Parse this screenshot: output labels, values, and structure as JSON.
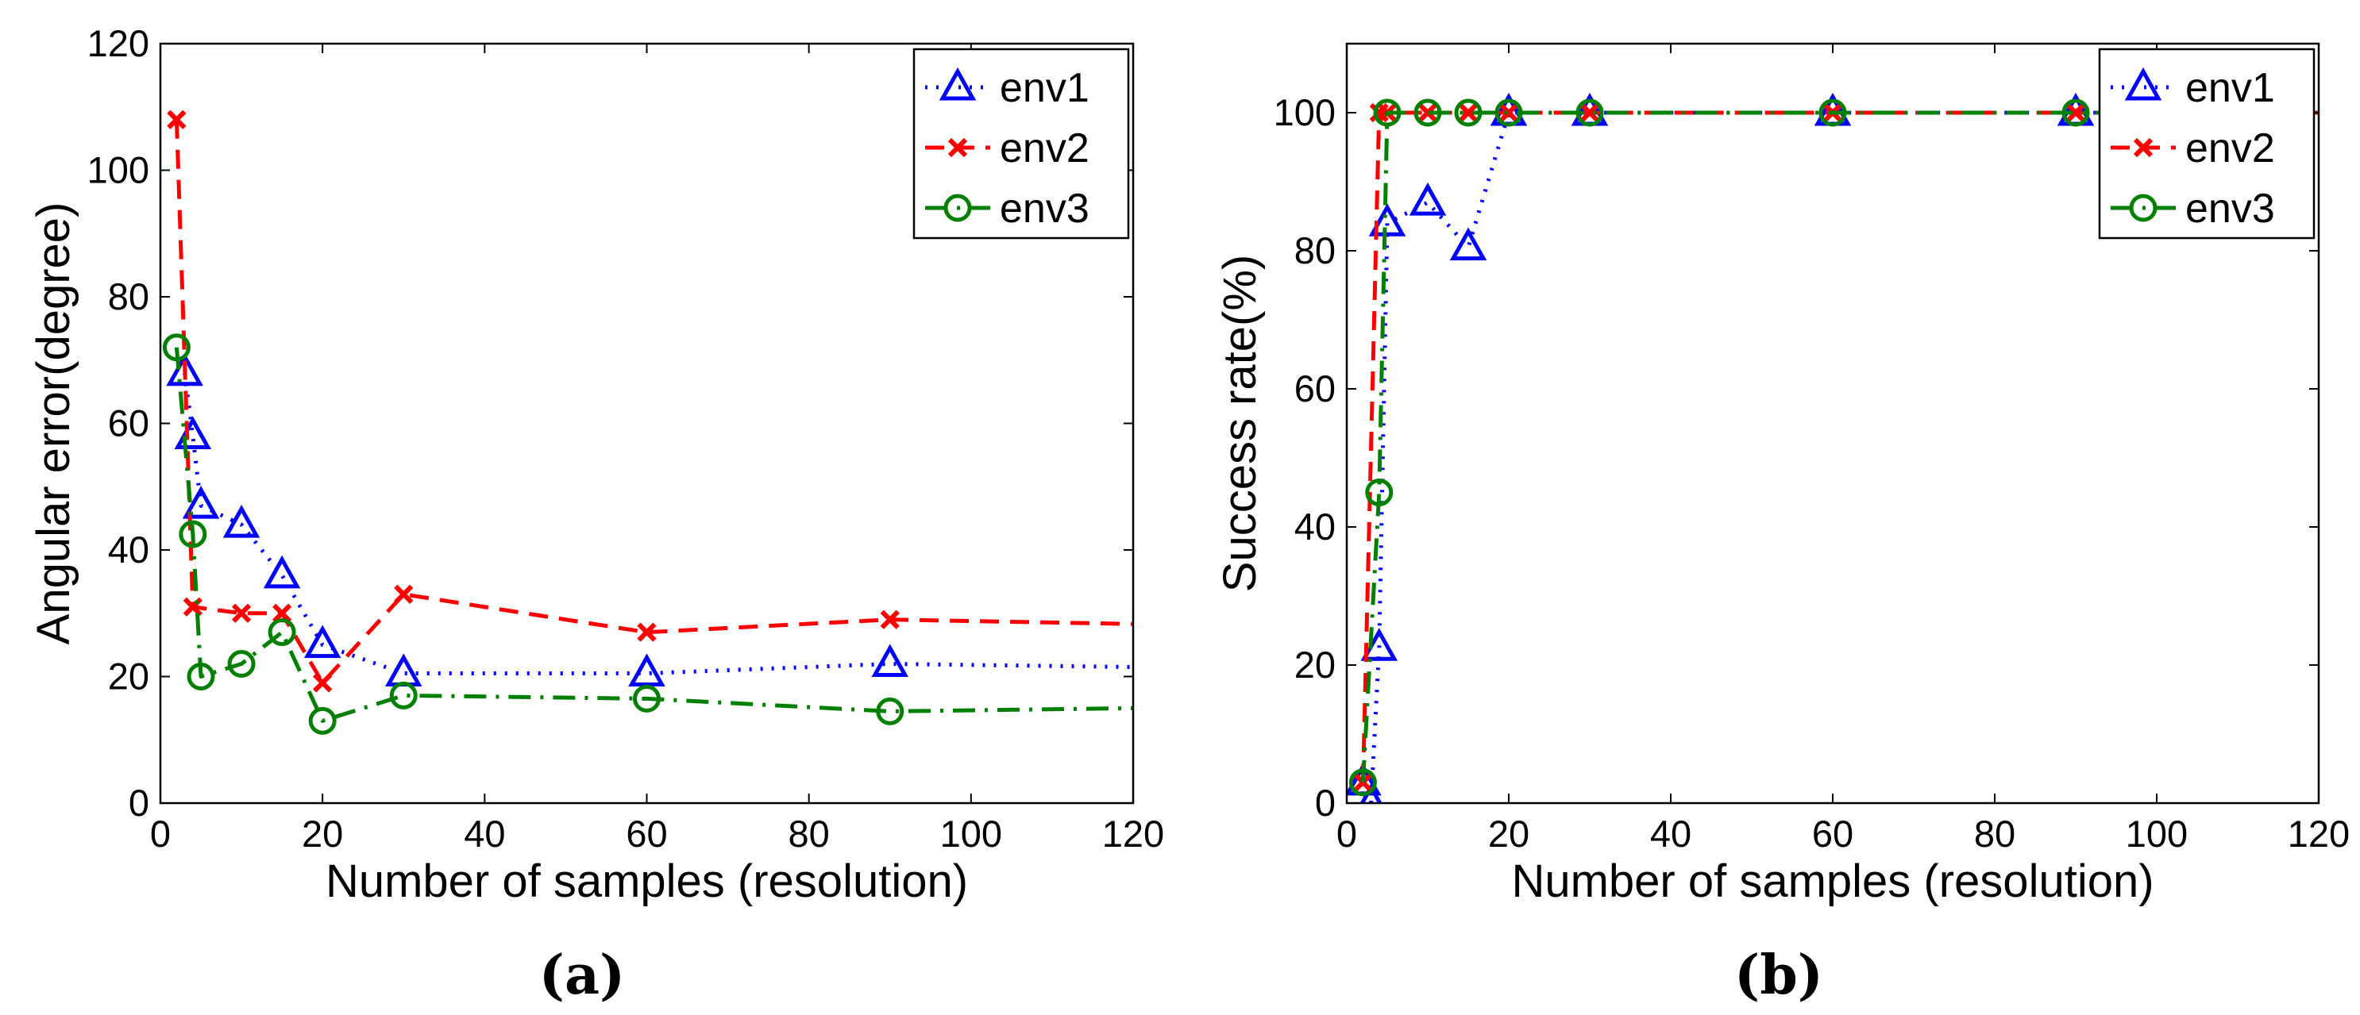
{
  "chart_data": [
    {
      "type": "line",
      "panel_label": "(a)",
      "title": "",
      "xlabel": "Number of samples (resolution)",
      "ylabel": "Angular error(degree)",
      "xlim": [
        0,
        120
      ],
      "ylim": [
        0,
        120
      ],
      "xticks": [
        "0",
        "20",
        "40",
        "60",
        "80",
        "100",
        "120"
      ],
      "yticks": [
        "0",
        "20",
        "40",
        "60",
        "80",
        "100",
        "120"
      ],
      "legend_position": "top-right",
      "series": [
        {
          "name": "env1",
          "color": "#0000ff",
          "line": "dotted",
          "marker": "triangle",
          "x": [
            3,
            4,
            5,
            10,
            15,
            20,
            30,
            60,
            90,
            120
          ],
          "y": [
            68,
            58,
            47,
            44,
            36,
            25,
            20.5,
            20.5,
            22,
            21.5
          ]
        },
        {
          "name": "env2",
          "color": "#ff0000",
          "line": "dashed",
          "marker": "x",
          "x": [
            2,
            4,
            10,
            15,
            20,
            30,
            60,
            90,
            120
          ],
          "y": [
            108,
            31,
            30,
            30,
            19,
            33,
            27,
            29,
            28.3
          ]
        },
        {
          "name": "env3",
          "color": "#008000",
          "line": "dashdot",
          "marker": "circle",
          "x": [
            2,
            4,
            5,
            10,
            15,
            20,
            30,
            60,
            90,
            120
          ],
          "y": [
            72,
            42.5,
            20,
            22,
            27,
            13,
            17,
            16.5,
            14.5,
            15
          ]
        }
      ]
    },
    {
      "type": "line",
      "panel_label": "(b)",
      "title": "",
      "xlabel": "Number of samples (resolution)",
      "ylabel": "Success rate(%)",
      "xlim": [
        0,
        120
      ],
      "ylim": [
        0,
        110
      ],
      "xticks": [
        "0",
        "20",
        "40",
        "60",
        "80",
        "100",
        "120"
      ],
      "yticks": [
        "0",
        "20",
        "40",
        "60",
        "80",
        "100"
      ],
      "legend_position": "top-right",
      "series": [
        {
          "name": "env1",
          "color": "#0000ff",
          "line": "dotted",
          "marker": "triangle",
          "x": [
            2,
            3,
            4,
            5,
            10,
            15,
            20,
            30,
            60,
            90,
            120
          ],
          "y": [
            3,
            0,
            22.5,
            84,
            87,
            80.5,
            100,
            100,
            100,
            100,
            100
          ]
        },
        {
          "name": "env2",
          "color": "#ff0000",
          "line": "dashed",
          "marker": "x",
          "x": [
            2,
            4,
            5,
            10,
            15,
            20,
            30,
            60,
            90,
            120
          ],
          "y": [
            3,
            100,
            100,
            100,
            100,
            100,
            100,
            100,
            100,
            100
          ]
        },
        {
          "name": "env3",
          "color": "#008000",
          "line": "dashdot",
          "marker": "circle",
          "x": [
            2,
            4,
            5,
            10,
            15,
            20,
            30,
            60,
            90,
            120
          ],
          "y": [
            3,
            45,
            100,
            100,
            100,
            100,
            100,
            100,
            100,
            100
          ]
        }
      ]
    }
  ]
}
